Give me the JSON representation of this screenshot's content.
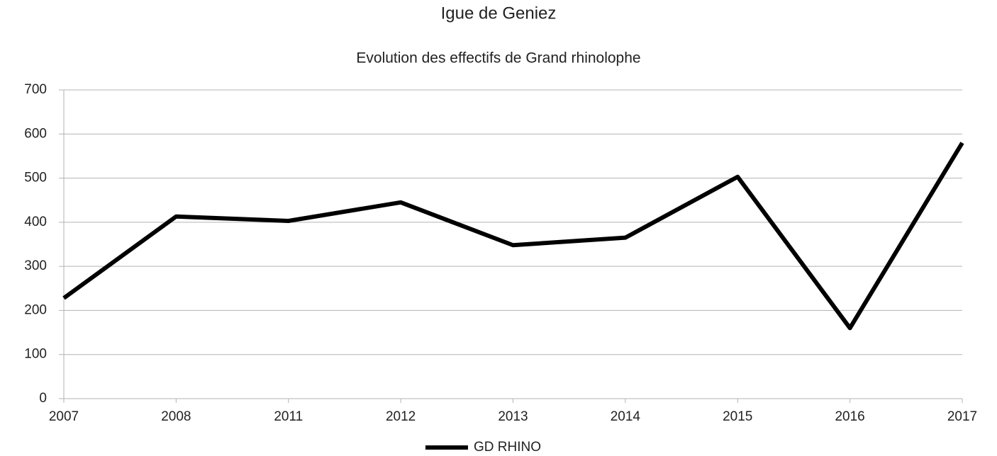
{
  "chart_data": {
    "type": "line",
    "title": "Igue de Geniez",
    "subtitle": "Evolution des effectifs de Grand rhinolophe",
    "categories": [
      "2007",
      "2008",
      "2011",
      "2012",
      "2013",
      "2014",
      "2015",
      "2016",
      "2017"
    ],
    "series": [
      {
        "name": "GD RHINO",
        "color": "#000000",
        "values": [
          228,
          413,
          403,
          445,
          348,
          365,
          503,
          160,
          580
        ]
      }
    ],
    "ylim": [
      0,
      700
    ],
    "yticks": [
      0,
      100,
      200,
      300,
      400,
      500,
      600,
      700
    ],
    "grid": true,
    "legend": "bottom"
  }
}
